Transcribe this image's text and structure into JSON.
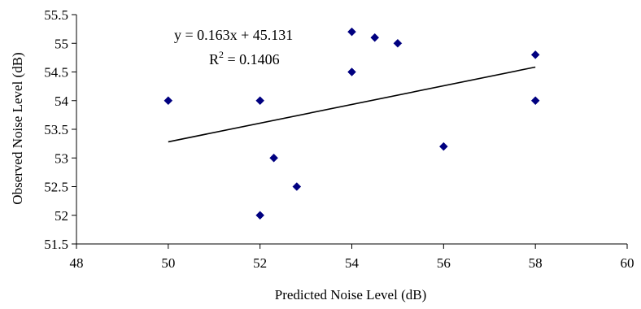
{
  "chart_data": {
    "type": "scatter",
    "title": "",
    "xlabel": "Predicted Noise Level (dB)",
    "ylabel": "Observed Noise Level (dB)",
    "xlim": [
      48,
      60
    ],
    "ylim": [
      51.5,
      55.5
    ],
    "x_ticks": [
      48,
      50,
      52,
      54,
      56,
      58,
      60
    ],
    "y_ticks": [
      51.5,
      52,
      52.5,
      53,
      53.5,
      54,
      54.5,
      55,
      55.5
    ],
    "grid": false,
    "legend": "none",
    "marker_color": "#000080",
    "series": [
      {
        "points": [
          {
            "x": 50,
            "y": 54.0
          },
          {
            "x": 52,
            "y": 54.0
          },
          {
            "x": 52,
            "y": 52.0
          },
          {
            "x": 52.3,
            "y": 53.0
          },
          {
            "x": 52.8,
            "y": 52.5
          },
          {
            "x": 54,
            "y": 55.2
          },
          {
            "x": 54,
            "y": 54.5
          },
          {
            "x": 54.5,
            "y": 55.1
          },
          {
            "x": 55,
            "y": 55.0
          },
          {
            "x": 56,
            "y": 53.2
          },
          {
            "x": 58,
            "y": 54.8
          },
          {
            "x": 58,
            "y": 54.0
          }
        ]
      }
    ],
    "trendline": {
      "slope": 0.163,
      "intercept": 45.131,
      "x_range": [
        50,
        58
      ],
      "color": "#000000"
    },
    "annotations": {
      "equation": "y = 0.163x + 45.131",
      "r2_prefix": "R",
      "r2_superscript": "2",
      "r2_value": " = 0.1406"
    }
  }
}
